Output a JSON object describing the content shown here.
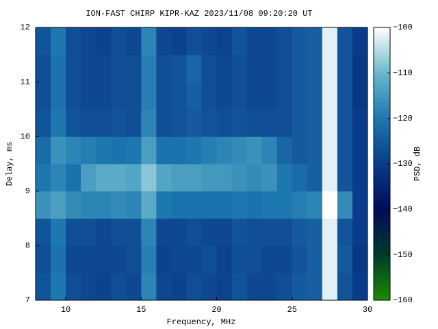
{
  "chart_data": {
    "type": "heatmap",
    "title": "ION-FAST CHIRP KIPR-KAZ 2023/11/08 09:20:20 UT",
    "x_label": "Frequency, MHz",
    "y_label": "Delay, ms",
    "colorbar_label": "PSD, dB",
    "xlim": [
      8,
      30
    ],
    "ylim": [
      7,
      12
    ],
    "xticks": [
      10,
      15,
      20,
      25,
      30
    ],
    "yticks": [
      7,
      8,
      9,
      10,
      11,
      12
    ],
    "clim": [
      -160,
      -100
    ],
    "colorbar_ticks": [
      {
        "value": -100,
        "label": "−100"
      },
      {
        "value": -110,
        "label": "−110"
      },
      {
        "value": -120,
        "label": "−120"
      },
      {
        "value": -130,
        "label": "−130"
      },
      {
        "value": -140,
        "label": "−140"
      },
      {
        "value": -150,
        "label": "−150"
      },
      {
        "value": -160,
        "label": "−160"
      }
    ],
    "colormap": [
      "#1a8c00",
      "#003a2a",
      "#000a5a",
      "#0a3c8a",
      "#1e78b0",
      "#6ab8cc",
      "#ffffff"
    ],
    "x_edges": [
      8,
      9,
      10,
      11,
      12,
      13,
      14,
      15,
      16,
      17,
      18,
      19,
      20,
      21,
      22,
      23,
      24,
      25,
      26,
      27,
      28,
      29,
      30
    ],
    "y_edges": [
      7,
      7.5,
      8,
      8.5,
      9,
      9.5,
      10,
      10.5,
      11,
      11.5,
      12
    ],
    "z": [
      [
        -126,
        -120,
        -127,
        -128,
        -129,
        -127,
        -128,
        -118,
        -128,
        -129,
        -127,
        -128,
        -129,
        -126,
        -128,
        -128,
        -127,
        -125,
        -124,
        -102,
        -126,
        -130
      ],
      [
        -127,
        -121,
        -128,
        -128,
        -128,
        -128,
        -127,
        -119,
        -129,
        -128,
        -128,
        -127,
        -129,
        -127,
        -127,
        -128,
        -128,
        -126,
        -124,
        -102,
        -125,
        -131
      ],
      [
        -126,
        -120,
        -127,
        -127,
        -128,
        -127,
        -127,
        -118,
        -128,
        -128,
        -127,
        -128,
        -128,
        -126,
        -127,
        -127,
        -127,
        -125,
        -124,
        -102,
        -126,
        -130
      ],
      [
        -116,
        -114,
        -117,
        -118,
        -118,
        -117,
        -118,
        -112,
        -120,
        -121,
        -121,
        -121,
        -121,
        -120,
        -121,
        -120,
        -120,
        -119,
        -118,
        -100,
        -117,
        -130
      ],
      [
        -120,
        -118,
        -121,
        -114,
        -112,
        -112,
        -113,
        -108,
        -113,
        -114,
        -114,
        -115,
        -115,
        -116,
        -117,
        -116,
        -120,
        -122,
        -124,
        -102,
        -126,
        -130
      ],
      [
        -122,
        -116,
        -118,
        -119,
        -120,
        -121,
        -120,
        -114,
        -121,
        -121,
        -120,
        -119,
        -118,
        -117,
        -116,
        -118,
        -123,
        -125,
        -124,
        -102,
        -126,
        -130
      ],
      [
        -126,
        -120,
        -126,
        -127,
        -127,
        -126,
        -127,
        -118,
        -127,
        -126,
        -125,
        -126,
        -127,
        -126,
        -127,
        -127,
        -127,
        -125,
        -124,
        -102,
        -126,
        -130
      ],
      [
        -127,
        -121,
        -127,
        -128,
        -128,
        -127,
        -127,
        -119,
        -127,
        -126,
        -124,
        -127,
        -128,
        -127,
        -128,
        -128,
        -127,
        -125,
        -124,
        -102,
        -126,
        -131
      ],
      [
        -127,
        -121,
        -127,
        -128,
        -128,
        -127,
        -127,
        -119,
        -127,
        -126,
        -123,
        -127,
        -128,
        -127,
        -128,
        -128,
        -127,
        -125,
        -124,
        -102,
        -126,
        -131
      ],
      [
        -126,
        -120,
        -127,
        -128,
        -129,
        -127,
        -128,
        -118,
        -128,
        -129,
        -127,
        -128,
        -129,
        -126,
        -128,
        -128,
        -127,
        -125,
        -124,
        -102,
        -126,
        -130
      ]
    ]
  }
}
